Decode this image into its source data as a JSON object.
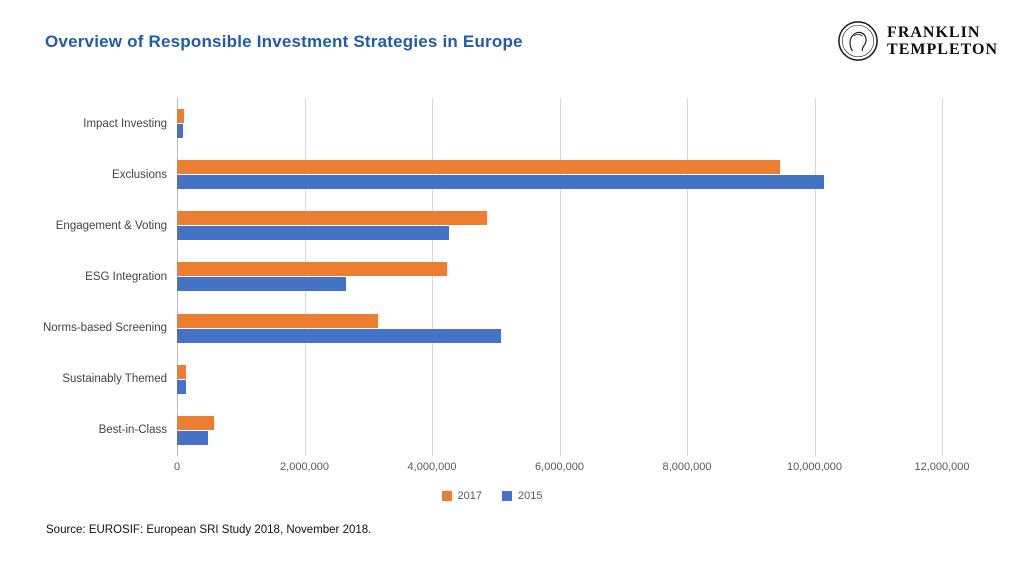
{
  "header": {
    "logo_line1": "FRANKLIN",
    "logo_line2": "TEMPLETON"
  },
  "chart_data": {
    "type": "bar",
    "orientation": "horizontal",
    "title": "Overview of Responsible Investment Strategies in Europe",
    "xlabel": "",
    "ylabel": "",
    "categories": [
      "Impact Investing",
      "Exclusions",
      "Engagement & Voting",
      "ESG Integration",
      "Norms-based Screening",
      "Sustainably Themed",
      "Best-in-Class"
    ],
    "series": [
      {
        "name": "2017",
        "color": "#ED7D31",
        "values": [
          108000,
          9464000,
          4858000,
          4240000,
          3148000,
          149000,
          586000
        ]
      },
      {
        "name": "2015",
        "color": "#4472C4",
        "values": [
          98000,
          10151000,
          4270000,
          2646000,
          5088000,
          145000,
          493000
        ]
      }
    ],
    "xlim": [
      0,
      12000000
    ],
    "xtick_step": 2000000,
    "grid": "vertical",
    "legend_position": "bottom",
    "colors": {
      "title": "#1F5CAD",
      "gridline": "#D9D9D9",
      "axis_text": "#595959"
    }
  },
  "footer": {
    "source": "Source: EUROSIF: European SRI Study 2018, November 2018."
  }
}
